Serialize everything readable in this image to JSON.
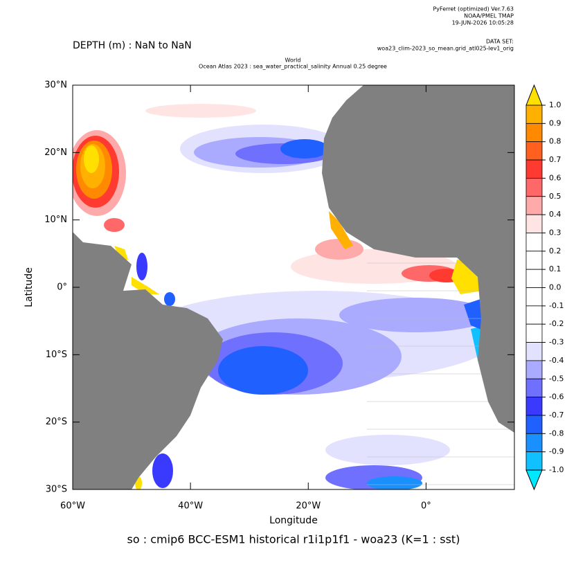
{
  "chart_data": {
    "type": "map",
    "header": [
      "PyFerret (optimized) Ver.7.63",
      "NOAA/PMEL TMAP",
      "19-JUN-2026 10:05:28"
    ],
    "dataset_label": "DATA SET:",
    "dataset": "woa23_clim-2023_so_mean.grid_atl025-lev1_orig",
    "depth": "DEPTH (m) : NaN to NaN",
    "title": [
      "World",
      "Ocean Atlas 2023 : sea_water_practical_salinity Annual  0.25 degree"
    ],
    "xlabel": "Longitude",
    "ylabel": "Latitude",
    "caption": "so : cmip6 BCC-ESM1 historical r1i1p1f1 - woa23  (K=1 : sst)",
    "xlim": [
      -60,
      15
    ],
    "ylim": [
      -30,
      30
    ],
    "xticks": [
      {
        "value": -60,
        "label": "60°W"
      },
      {
        "value": -40,
        "label": "40°W"
      },
      {
        "value": -20,
        "label": "20°W"
      },
      {
        "value": 0,
        "label": "0°"
      }
    ],
    "yticks": [
      {
        "value": 30,
        "label": "30°N"
      },
      {
        "value": 20,
        "label": "20°N"
      },
      {
        "value": 10,
        "label": "10°N"
      },
      {
        "value": 0,
        "label": "0°"
      },
      {
        "value": -10,
        "label": "10°S"
      },
      {
        "value": -20,
        "label": "20°S"
      },
      {
        "value": -30,
        "label": "30°S"
      }
    ],
    "land_color": "#808080",
    "colorbar": {
      "levels": [
        {
          "value": 1.0,
          "label": "1.0"
        },
        {
          "value": 0.9,
          "label": "0.9"
        },
        {
          "value": 0.8,
          "label": "0.8"
        },
        {
          "value": 0.7,
          "label": "0.7"
        },
        {
          "value": 0.6,
          "label": "0.6"
        },
        {
          "value": 0.5,
          "label": "0.5"
        },
        {
          "value": 0.4,
          "label": "0.4"
        },
        {
          "value": 0.3,
          "label": "0.3"
        },
        {
          "value": 0.2,
          "label": "0.2"
        },
        {
          "value": 0.1,
          "label": "0.1"
        },
        {
          "value": 0.0,
          "label": "0.0"
        },
        {
          "value": -0.1,
          "label": "-0.1"
        },
        {
          "value": -0.2,
          "label": "-0.2"
        },
        {
          "value": -0.3,
          "label": "-0.3"
        },
        {
          "value": -0.4,
          "label": "-0.4"
        },
        {
          "value": -0.5,
          "label": "-0.5"
        },
        {
          "value": -0.6,
          "label": "-0.6"
        },
        {
          "value": -0.7,
          "label": "-0.7"
        },
        {
          "value": -0.8,
          "label": "-0.8"
        },
        {
          "value": -0.9,
          "label": "-0.9"
        },
        {
          "value": -1.0,
          "label": "-1.0"
        }
      ],
      "colors": [
        "#ffe000",
        "#ffb000",
        "#ff8a00",
        "#ff6020",
        "#ff3a30",
        "#ff6868",
        "#ffaaaa",
        "#ffe4e4",
        "#ffffff",
        "#ffffff",
        "#ffffff",
        "#ffffff",
        "#ffffff",
        "#ffffff",
        "#e2e2ff",
        "#aaaaff",
        "#7070ff",
        "#3a3aff",
        "#2060ff",
        "#1a90ff",
        "#10c0ff",
        "#00e8ff"
      ]
    }
  }
}
